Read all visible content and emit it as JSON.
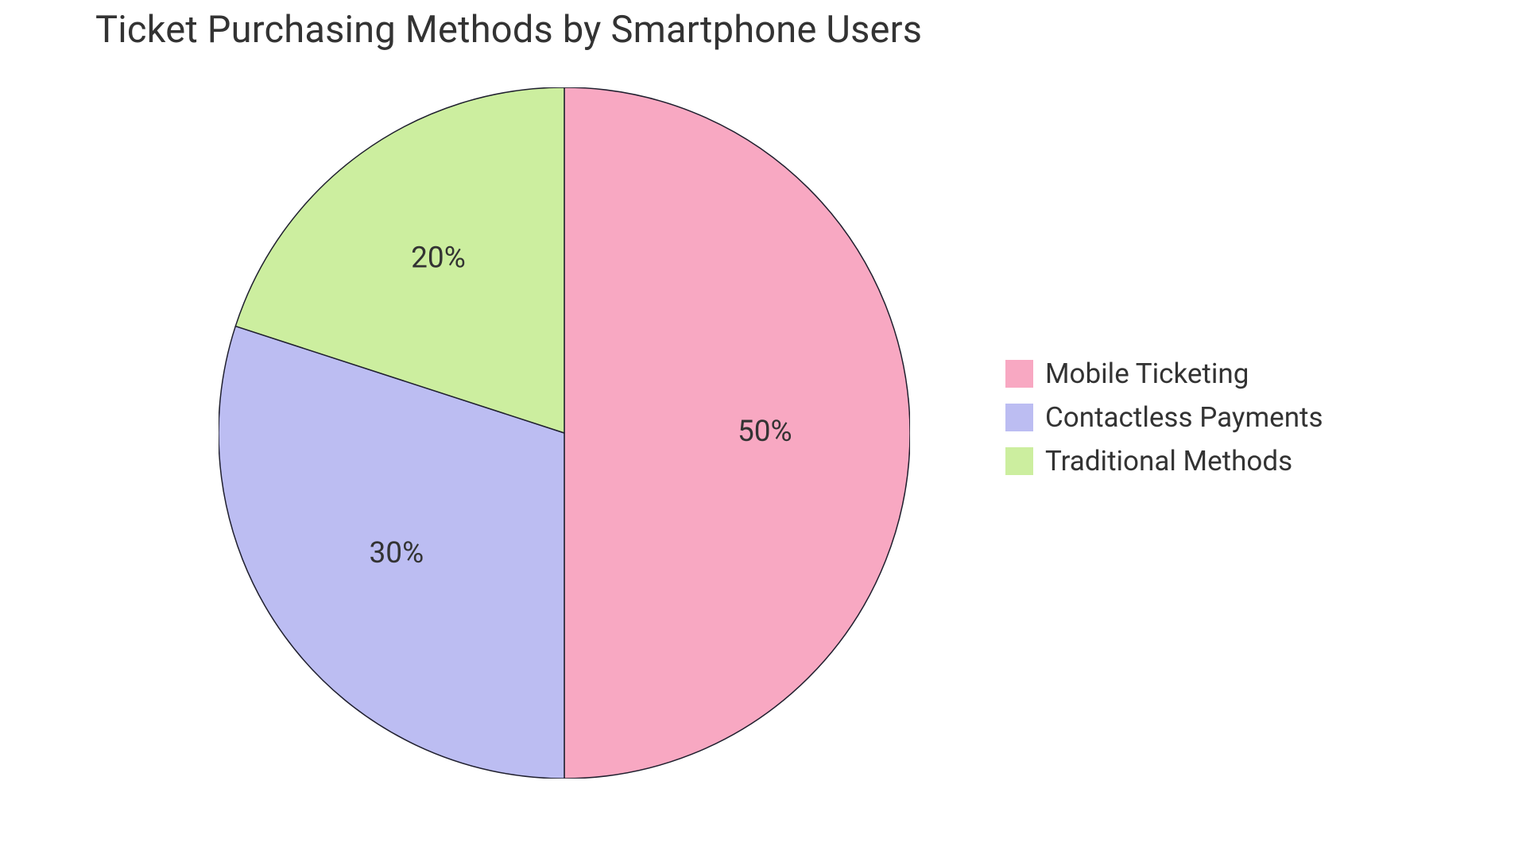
{
  "chart": {
    "type": "pie",
    "title": "Ticket Purchasing Methods by Smartphone Users",
    "title_fontsize": 47,
    "title_color": "#333333",
    "background_color": "#ffffff",
    "stroke_color": "#1f1f2e",
    "stroke_width": 1.5,
    "label_fontsize": 37,
    "label_color": "#333333",
    "legend_fontsize": 35,
    "legend_swatch_size": 35,
    "radius": 435,
    "slices": [
      {
        "label": "Mobile Ticketing",
        "value": 50,
        "display": "50%",
        "color": "#f8a8c2"
      },
      {
        "label": "Contactless Payments",
        "value": 30,
        "display": "30%",
        "color": "#bcbdf2"
      },
      {
        "label": "Traditional Methods",
        "value": 20,
        "display": "20%",
        "color": "#ccee9f"
      }
    ]
  }
}
